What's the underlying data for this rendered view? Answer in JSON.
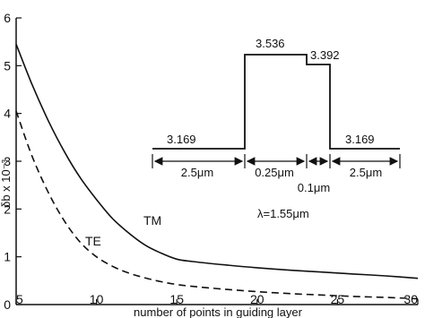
{
  "chart_data": {
    "type": "line",
    "xlabel": "number of points in guiding layer",
    "ylabel": "δb x 10⁻³",
    "xlim": [
      5,
      30
    ],
    "ylim": [
      0,
      6
    ],
    "x_ticks": [
      "5",
      "10",
      "15",
      "20",
      "25",
      "30"
    ],
    "y_ticks": [
      "0",
      "1",
      "2",
      "3",
      "4",
      "5",
      "6"
    ],
    "grid": false,
    "series": [
      {
        "name": "TM",
        "style": "solid",
        "x": [
          5,
          6,
          7,
          8,
          9,
          10,
          11,
          12,
          13,
          14,
          15,
          16,
          18,
          20,
          22,
          24,
          26,
          28,
          30
        ],
        "y": [
          5.45,
          4.6,
          3.85,
          3.2,
          2.65,
          2.2,
          1.8,
          1.5,
          1.25,
          1.08,
          0.95,
          0.9,
          0.83,
          0.77,
          0.72,
          0.68,
          0.64,
          0.6,
          0.55
        ]
      },
      {
        "name": "TE",
        "style": "dashed",
        "x": [
          5,
          6,
          7,
          8,
          9,
          10,
          11,
          12,
          13,
          14,
          15,
          16,
          18,
          20,
          22,
          24,
          26,
          28,
          30
        ],
        "y": [
          4.05,
          3.1,
          2.35,
          1.75,
          1.3,
          1.0,
          0.8,
          0.66,
          0.56,
          0.48,
          0.42,
          0.38,
          0.32,
          0.27,
          0.23,
          0.2,
          0.17,
          0.15,
          0.12
        ]
      }
    ],
    "inset": {
      "index_labels": [
        "3.169",
        "3.536",
        "3.392",
        "3.169"
      ],
      "dimension_labels": [
        "2.5μm",
        "0.25μm",
        "0.1μm",
        "2.5μm"
      ],
      "wavelength_label": "λ=1.55μm"
    }
  }
}
